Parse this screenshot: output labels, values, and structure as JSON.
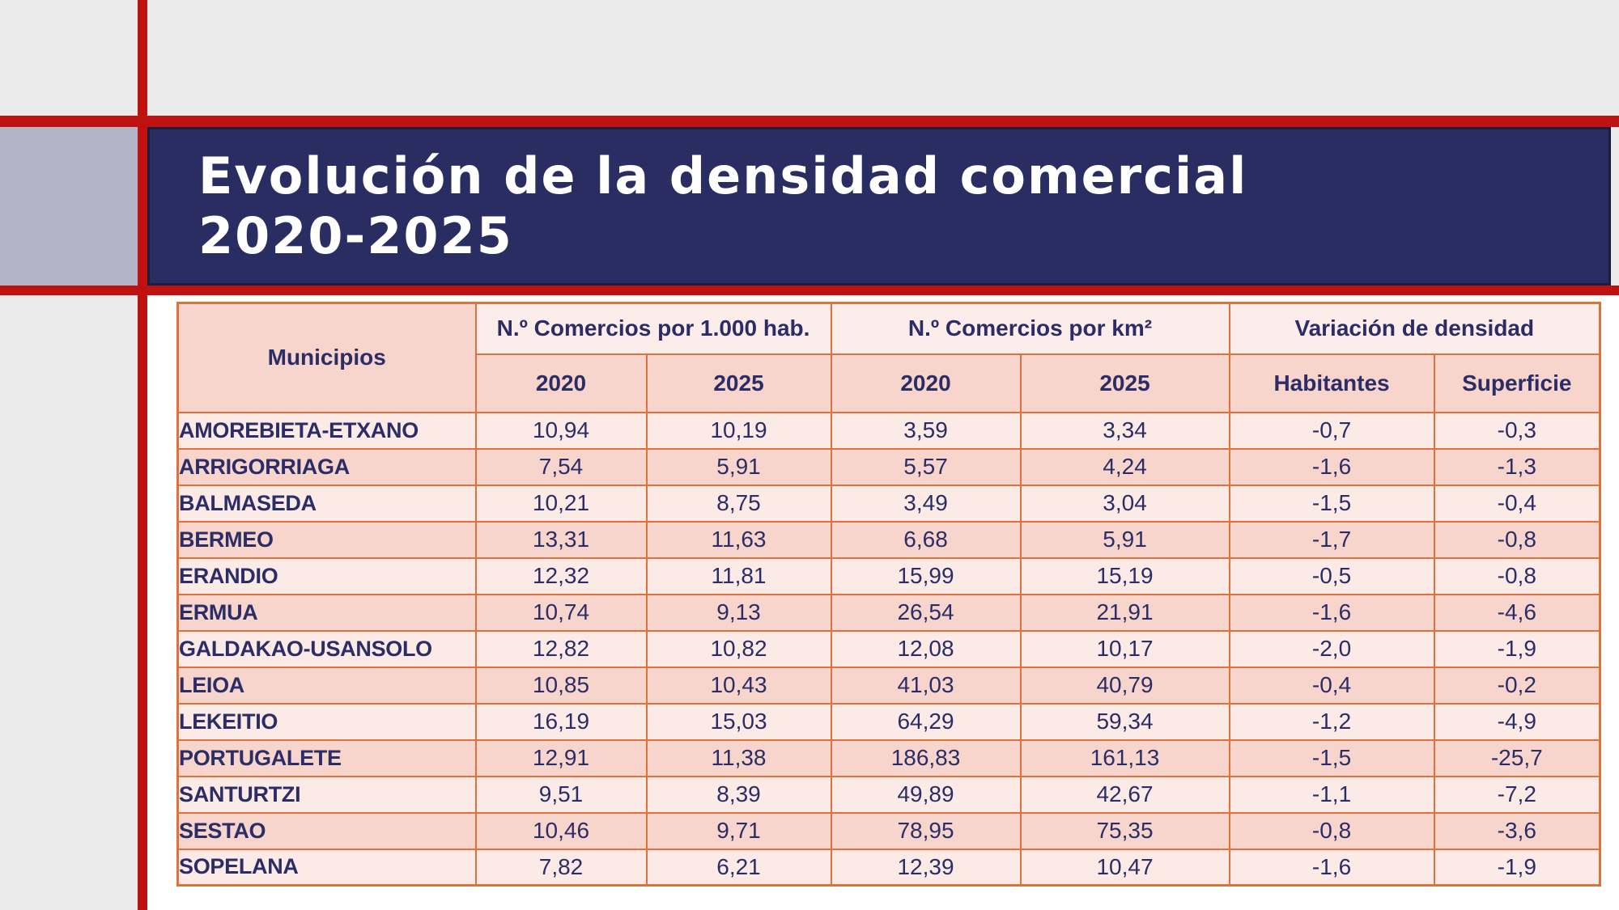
{
  "title": {
    "line1": "Evolución de la densidad comercial",
    "line2": "2020-2025"
  },
  "table": {
    "groups": [
      {
        "label": "Municipios"
      },
      {
        "label": "N.º Comercios por 1.000 hab.",
        "children": [
          "2020",
          "2025"
        ]
      },
      {
        "label": "N.º Comercios por km²",
        "children": [
          "2020",
          "2025"
        ]
      },
      {
        "label": "Variación de densidad",
        "children": [
          "Habitantes",
          "Superficie"
        ]
      }
    ],
    "rows": [
      {
        "name": "AMOREBIETA-ETXANO",
        "values": [
          "10,94",
          "10,19",
          "3,59",
          "3,34",
          "-0,7",
          "-0,3"
        ]
      },
      {
        "name": "ARRIGORRIAGA",
        "values": [
          "7,54",
          "5,91",
          "5,57",
          "4,24",
          "-1,6",
          "-1,3"
        ]
      },
      {
        "name": "BALMASEDA",
        "values": [
          "10,21",
          "8,75",
          "3,49",
          "3,04",
          "-1,5",
          "-0,4"
        ]
      },
      {
        "name": "BERMEO",
        "values": [
          "13,31",
          "11,63",
          "6,68",
          "5,91",
          "-1,7",
          "-0,8"
        ]
      },
      {
        "name": "ERANDIO",
        "values": [
          "12,32",
          "11,81",
          "15,99",
          "15,19",
          "-0,5",
          "-0,8"
        ]
      },
      {
        "name": "ERMUA",
        "values": [
          "10,74",
          "9,13",
          "26,54",
          "21,91",
          "-1,6",
          "-4,6"
        ]
      },
      {
        "name": "GALDAKAO-USANSOLO",
        "values": [
          "12,82",
          "10,82",
          "12,08",
          "10,17",
          "-2,0",
          "-1,9"
        ]
      },
      {
        "name": "LEIOA",
        "values": [
          "10,85",
          "10,43",
          "41,03",
          "40,79",
          "-0,4",
          "-0,2"
        ]
      },
      {
        "name": "LEKEITIO",
        "values": [
          "16,19",
          "15,03",
          "64,29",
          "59,34",
          "-1,2",
          "-4,9"
        ]
      },
      {
        "name": "PORTUGALETE",
        "values": [
          "12,91",
          "11,38",
          "186,83",
          "161,13",
          "-1,5",
          "-25,7"
        ]
      },
      {
        "name": "SANTURTZI",
        "values": [
          "9,51",
          "8,39",
          "49,89",
          "42,67",
          "-1,1",
          "-7,2"
        ]
      },
      {
        "name": "SESTAO",
        "values": [
          "10,46",
          "9,71",
          "78,95",
          "75,35",
          "-0,8",
          "-3,6"
        ]
      },
      {
        "name": "SOPELANA",
        "values": [
          "7,82",
          "6,21",
          "12,39",
          "10,47",
          "-1,6",
          "-1,9"
        ]
      }
    ]
  },
  "colors": {
    "accent_red": "#c01111",
    "title_navy": "#2a2d62",
    "title_navy_border": "#1c1e3f",
    "lavender_block": "#b3b5c7",
    "table_border_orange": "#e0713a",
    "header_pink_light": "#fcecea",
    "header_pink_dark": "#f7d5cd",
    "row_pink_light": "#fbeae6",
    "row_pink_dark": "#f7d5cd",
    "text_navy": "#2b2d66",
    "background_gray": "#ebeaea",
    "content_background": "#ffffff"
  }
}
